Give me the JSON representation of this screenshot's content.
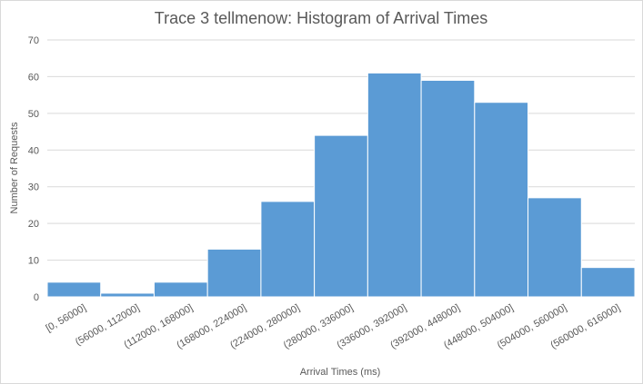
{
  "chart_data": {
    "type": "bar",
    "title": "Trace 3 tellmenow: Histogram of Arrival Times",
    "xlabel": "Arrival Times (ms)",
    "ylabel": "Number of Requests",
    "categories": [
      "[0, 56000]",
      "(56000, 112000]",
      "(112000, 168000]",
      "(168000, 224000]",
      "(224000, 280000]",
      "(280000, 336000]",
      "(336000, 392000]",
      "(392000, 448000]",
      "(448000, 504000]",
      "(504000, 560000]",
      "(560000, 616000]"
    ],
    "values": [
      4,
      1,
      4,
      13,
      26,
      44,
      61,
      59,
      53,
      27,
      8
    ],
    "ylim": [
      0,
      70
    ],
    "yticks": [
      "0",
      "10",
      "20",
      "30",
      "40",
      "50",
      "60",
      "70"
    ],
    "grid": true,
    "legend": "none",
    "bar_color": "#5b9bd5"
  }
}
